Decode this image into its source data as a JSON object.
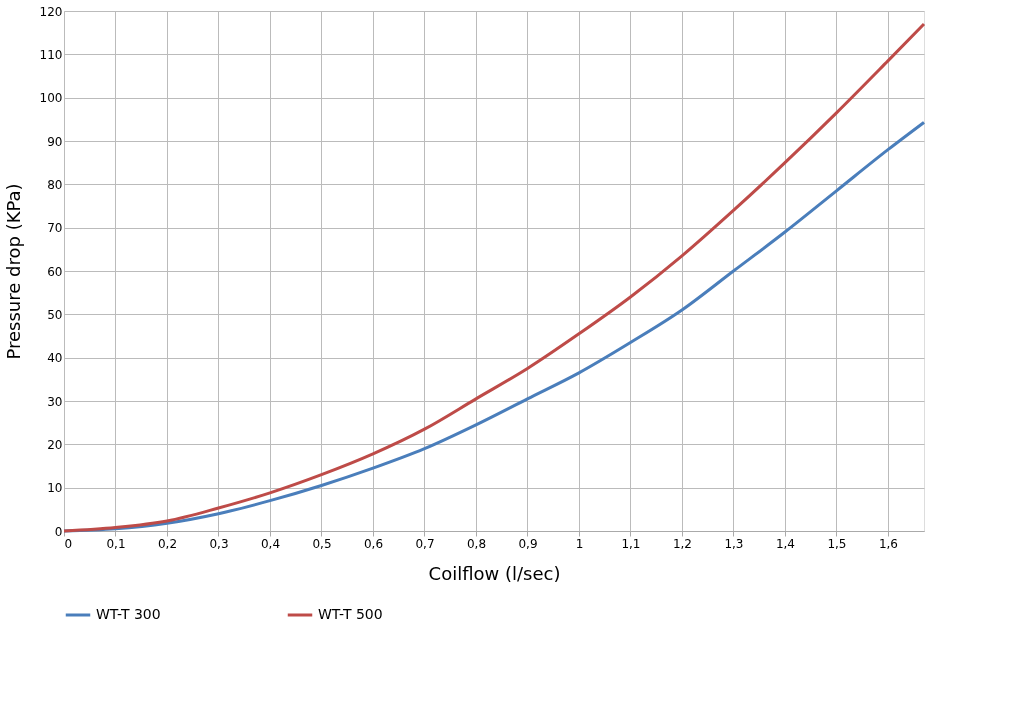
{
  "chart_data": {
    "type": "line",
    "xlabel": "Coilflow (l/sec)",
    "ylabel": "Pressure drop (KPa)",
    "xlim": [
      0,
      1.67
    ],
    "ylim": [
      0,
      120
    ],
    "xticks": [
      0,
      {
        "value": 0.1,
        "label": "0,1"
      },
      {
        "value": 0.2,
        "label": "0,2"
      },
      {
        "value": 0.3,
        "label": "0,3"
      },
      {
        "value": 0.4,
        "label": "0,4"
      },
      {
        "value": 0.5,
        "label": "0,5"
      },
      {
        "value": 0.6,
        "label": "0,6"
      },
      {
        "value": 0.7,
        "label": "0,7"
      },
      {
        "value": 0.8,
        "label": "0,8"
      },
      {
        "value": 0.9,
        "label": "0,9"
      },
      1,
      {
        "value": 1.1,
        "label": "1,1"
      },
      {
        "value": 1.2,
        "label": "1,2"
      },
      {
        "value": 1.3,
        "label": "1,3"
      },
      {
        "value": 1.4,
        "label": "1,4"
      },
      {
        "value": 1.5,
        "label": "1,5"
      },
      {
        "value": 1.6,
        "label": "1,6"
      }
    ],
    "yticks": [
      0,
      10,
      20,
      30,
      40,
      50,
      60,
      70,
      80,
      90,
      100,
      110,
      120
    ],
    "grid": true,
    "legend": "bottom",
    "marker": "none",
    "line_style": "solid",
    "x": [
      0,
      0.1,
      0.2,
      0.3,
      0.4,
      0.5,
      0.6,
      0.7,
      0.8,
      0.9,
      1.0,
      1.1,
      1.2,
      1.3,
      1.4,
      1.5,
      1.6,
      1.67
    ],
    "series": [
      {
        "name": "WT-T 300",
        "color": "#4a7ebb",
        "values": [
          0,
          0.5,
          1.8,
          4,
          7,
          10.5,
          14.5,
          19,
          24.5,
          30.5,
          36.5,
          43.5,
          51,
          60,
          69,
          78.5,
          88,
          94.3
        ]
      },
      {
        "name": "WT-T 500",
        "color": "#be4b48",
        "values": [
          0,
          0.8,
          2.3,
          5.3,
          8.8,
          13,
          17.8,
          23.5,
          30.5,
          37.5,
          45.5,
          54,
          63.5,
          74,
          85,
          96.5,
          108.5,
          117
        ]
      }
    ]
  }
}
